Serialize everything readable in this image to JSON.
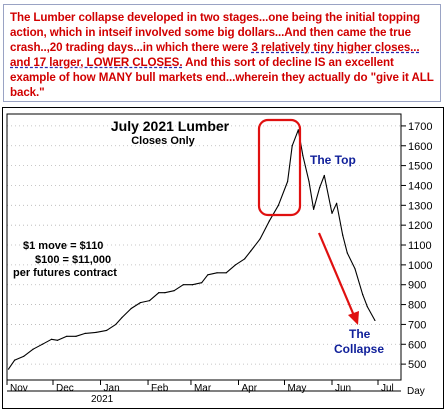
{
  "header": {
    "segments": [
      {
        "text": "The Lumber collapse developed in two stages...one being the initial topping action, which in intseif involved some big dollars...And then came the true crash..,20 trading days...in which there were ",
        "style": "plain"
      },
      {
        "text": "3 relatively tiny higher closes...",
        "style": "underline"
      },
      {
        "text": " ",
        "style": "plain"
      },
      {
        "text": "and 17 larger, LOWER CLOSES.",
        "style": "underline"
      },
      {
        "text": " And this sort of decline IS an excellent example of how MANY bull markets end...wherein they actually do \"give it ALL back.\"",
        "style": "plain"
      }
    ]
  },
  "chart_data": {
    "type": "line",
    "title": "July 2021 Lumber",
    "subtitle": "Closes Only",
    "x_ticks": [
      "Nov",
      "Dec",
      "Jan",
      "Feb",
      "Mar",
      "Apr",
      "May",
      "Jun",
      "Jul"
    ],
    "x_year_label": "2021",
    "y_ticks": [
      500,
      600,
      700,
      800,
      900,
      1000,
      1100,
      1200,
      1300,
      1400,
      1500,
      1600,
      1700
    ],
    "ylim": [
      420,
      1760
    ],
    "y_axis_corner_label": "Day",
    "series": [
      {
        "color": "#000000",
        "x": [
          "2020-11-02",
          "2020-11-06",
          "2020-11-12",
          "2020-11-18",
          "2020-11-24",
          "2020-11-30",
          "2020-12-04",
          "2020-12-10",
          "2020-12-16",
          "2020-12-22",
          "2020-12-29",
          "2021-01-05",
          "2021-01-11",
          "2021-01-15",
          "2021-01-21",
          "2021-01-27",
          "2021-02-02",
          "2021-02-08",
          "2021-02-12",
          "2021-02-18",
          "2021-02-24",
          "2021-03-02",
          "2021-03-08",
          "2021-03-12",
          "2021-03-18",
          "2021-03-24",
          "2021-03-30",
          "2021-04-05",
          "2021-04-09",
          "2021-04-15",
          "2021-04-21",
          "2021-04-27",
          "2021-05-03",
          "2021-05-06",
          "2021-05-10",
          "2021-05-13",
          "2021-05-17",
          "2021-05-20",
          "2021-05-24",
          "2021-05-27",
          "2021-06-01",
          "2021-06-04",
          "2021-06-08",
          "2021-06-11",
          "2021-06-16",
          "2021-06-21",
          "2021-06-24",
          "2021-06-29"
        ],
        "y": [
          475,
          520,
          540,
          575,
          600,
          625,
          620,
          640,
          640,
          655,
          660,
          670,
          700,
          735,
          780,
          810,
          820,
          860,
          860,
          870,
          900,
          900,
          910,
          950,
          960,
          960,
          1000,
          1030,
          1070,
          1130,
          1220,
          1300,
          1420,
          1600,
          1680,
          1550,
          1420,
          1280,
          1390,
          1450,
          1260,
          1310,
          1150,
          1060,
          980,
          850,
          790,
          720
        ]
      }
    ],
    "annotations": {
      "top_label": "The Top",
      "collapse_label": "The Collapse",
      "note_lines": [
        "$1 move = $110",
        "$100 = $11,000",
        "per futures contract"
      ],
      "arrow_color": "#e01010",
      "box_color": "#e01010",
      "label_color": "#10209a"
    }
  }
}
